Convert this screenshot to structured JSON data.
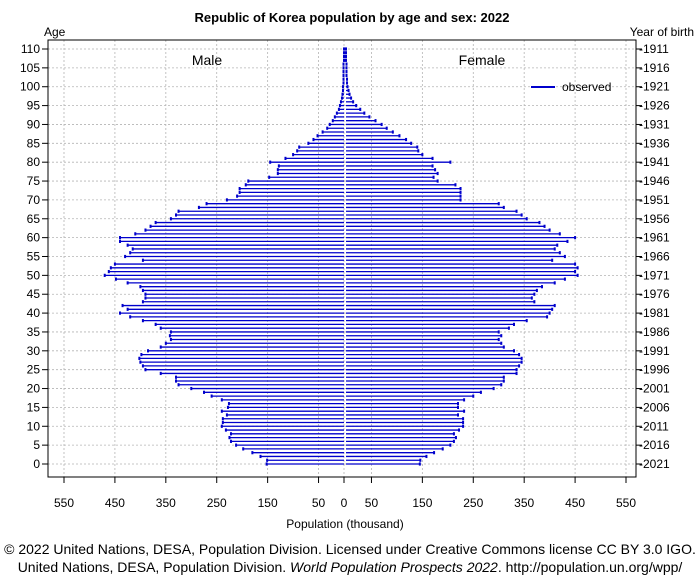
{
  "chart_data": {
    "type": "bar",
    "orientation": "horizontal-pyramid",
    "title": "Republic of Korea population by age and sex: 2022",
    "xlabel": "Population (thousand)",
    "left_axis_title": "Age",
    "right_axis_title": "Year of birth",
    "left_panel_label": "Male",
    "right_panel_label": "Female",
    "legend": [
      {
        "name": "observed",
        "color": "#0000cc"
      }
    ],
    "legend_position": "top-right",
    "grid": true,
    "xlim": [
      -550,
      550
    ],
    "ylim": [
      0,
      110
    ],
    "x_ticks": [
      -550,
      -450,
      -350,
      -250,
      -150,
      -50,
      0,
      50,
      150,
      250,
      350,
      450,
      550
    ],
    "x_tick_labels": [
      "550",
      "450",
      "350",
      "250",
      "150",
      "50",
      "0",
      "50",
      "150",
      "250",
      "350",
      "450",
      "550"
    ],
    "age_ticks": [
      0,
      5,
      10,
      15,
      20,
      25,
      30,
      35,
      40,
      45,
      50,
      55,
      60,
      65,
      70,
      75,
      80,
      85,
      90,
      95,
      100,
      105,
      110
    ],
    "age_tick_labels": [
      "0",
      "5",
      "10",
      "15",
      "20",
      "25",
      "30",
      "35",
      "40",
      "45",
      "50",
      "55",
      "60",
      "65",
      "70",
      "75",
      "80",
      "85",
      "90",
      "95",
      "100",
      "105",
      "110"
    ],
    "birth_year_labels": [
      "2021",
      "2016",
      "2011",
      "2006",
      "2001",
      "1996",
      "1991",
      "1986",
      "1981",
      "1976",
      "1971",
      "1966",
      "1961",
      "1956",
      "1951",
      "1946",
      "1941",
      "1936",
      "1931",
      "1926",
      "1921",
      "1916",
      "1911"
    ],
    "ages": [
      0,
      1,
      2,
      3,
      4,
      5,
      6,
      7,
      8,
      9,
      10,
      11,
      12,
      13,
      14,
      15,
      16,
      17,
      18,
      19,
      20,
      21,
      22,
      23,
      24,
      25,
      26,
      27,
      28,
      29,
      30,
      31,
      32,
      33,
      34,
      35,
      36,
      37,
      38,
      39,
      40,
      41,
      42,
      43,
      44,
      45,
      46,
      47,
      48,
      49,
      50,
      51,
      52,
      53,
      54,
      55,
      56,
      57,
      58,
      59,
      60,
      61,
      62,
      63,
      64,
      65,
      66,
      67,
      68,
      69,
      70,
      71,
      72,
      73,
      74,
      75,
      76,
      77,
      78,
      79,
      80,
      81,
      82,
      83,
      84,
      85,
      86,
      87,
      88,
      89,
      90,
      91,
      92,
      93,
      94,
      95,
      96,
      97,
      98,
      99,
      100,
      101,
      102,
      103,
      104,
      105,
      106,
      107,
      108,
      109,
      110
    ],
    "series": [
      {
        "name": "Male",
        "values": [
          152,
          151,
          164,
          180,
          198,
          212,
          222,
          225,
          222,
          232,
          240,
          238,
          238,
          230,
          240,
          228,
          226,
          240,
          260,
          275,
          300,
          325,
          330,
          330,
          360,
          390,
          395,
          400,
          402,
          398,
          385,
          360,
          350,
          340,
          342,
          340,
          360,
          370,
          395,
          420,
          440,
          425,
          435,
          395,
          390,
          390,
          395,
          400,
          425,
          448,
          470,
          462,
          458,
          450,
          395,
          430,
          420,
          415,
          425,
          440,
          440,
          410,
          390,
          380,
          370,
          340,
          330,
          325,
          285,
          270,
          230,
          210,
          205,
          205,
          193,
          188,
          147,
          130,
          130,
          128,
          145,
          115,
          100,
          92,
          88,
          70,
          60,
          52,
          42,
          33,
          28,
          22,
          18,
          14,
          10,
          8,
          6,
          4,
          3,
          2,
          2,
          1,
          1,
          1,
          1,
          1,
          1,
          0,
          0,
          0,
          0
        ]
      },
      {
        "name": "Female",
        "values": [
          145,
          146,
          158,
          173,
          190,
          205,
          212,
          216,
          212,
          222,
          230,
          230,
          230,
          220,
          232,
          220,
          220,
          232,
          250,
          265,
          290,
          305,
          310,
          310,
          335,
          335,
          340,
          345,
          345,
          340,
          330,
          310,
          305,
          300,
          305,
          300,
          320,
          330,
          355,
          395,
          400,
          405,
          410,
          370,
          365,
          370,
          375,
          385,
          410,
          430,
          455,
          450,
          455,
          450,
          405,
          430,
          420,
          410,
          415,
          435,
          450,
          420,
          400,
          390,
          380,
          355,
          345,
          335,
          310,
          300,
          225,
          225,
          225,
          225,
          215,
          180,
          172,
          180,
          175,
          170,
          205,
          170,
          150,
          142,
          140,
          128,
          118,
          105,
          92,
          80,
          70,
          58,
          46,
          36,
          28,
          20,
          14,
          10,
          7,
          5,
          3,
          2,
          2,
          1,
          1,
          1,
          1,
          0,
          0,
          0,
          0
        ]
      }
    ]
  },
  "caption": {
    "line1": "© 2022 United Nations, DESA, Population Division. Licensed under Creative Commons license CC BY 3.0 IGO.",
    "line2_pre": "United Nations, DESA, Population Division.",
    "line2_italic": "World Population Prospects 2022",
    "line2_post": ". http://population.un.org/wpp/"
  },
  "colors": {
    "bar": "#0000cc",
    "grid": "#b4b4b4",
    "axis": "#000000"
  }
}
